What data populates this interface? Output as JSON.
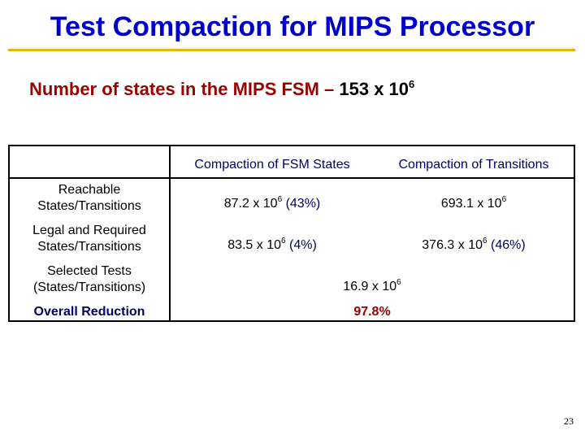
{
  "slide": {
    "title": "Test Compaction for MIPS Processor",
    "subtitle_text": "Number of states in the MIPS FSM – ",
    "subtitle_number": "153 x 10",
    "subtitle_exponent": "6",
    "page_number": "23"
  },
  "table": {
    "headers": {
      "col1": "Compaction of FSM States",
      "col2": "Compaction of Transitions"
    },
    "rows": [
      {
        "label_line1": "Reachable",
        "label_line2": "States/Transitions",
        "c1_base": "87.2 x 10",
        "c1_exp": "6",
        "c1_pct": "(43%)",
        "c2_base": "693.1 x 10",
        "c2_exp": "6"
      },
      {
        "label_line1": "Legal and Required",
        "label_line2": "States/Transitions",
        "c1_base": "83.5 x 10",
        "c1_exp": "6",
        "c1_pct": "(4%)",
        "c2_base": "376.3 x 10",
        "c2_exp": "6",
        "c2_pct": "(46%)"
      },
      {
        "label_line1": "Selected Tests",
        "label_line2": "(States/Transitions)",
        "merged_base": "16.9 x 10",
        "merged_exp": "6"
      },
      {
        "label": "Overall Reduction",
        "merged_value": "97.8%"
      }
    ]
  }
}
